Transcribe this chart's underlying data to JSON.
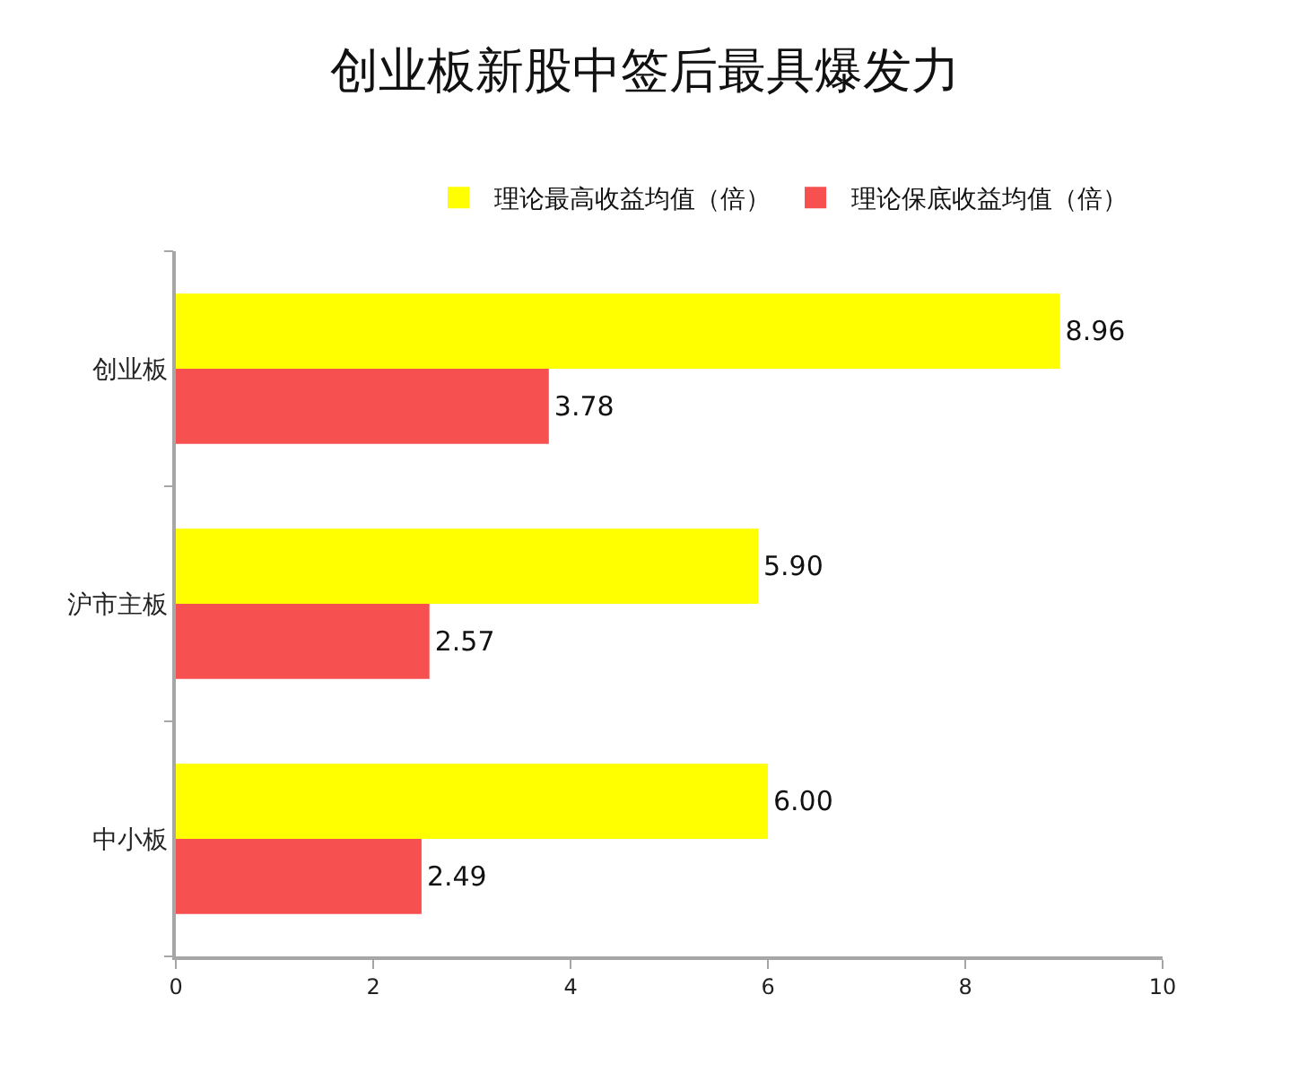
{
  "chart_data": {
    "type": "bar",
    "orientation": "horizontal",
    "title": "创业板新股中签后最具爆发力",
    "categories": [
      "创业板",
      "沪市主板",
      "中小板"
    ],
    "series": [
      {
        "name": "理论最高收益均值（倍）",
        "color": "#ffff00",
        "values": [
          8.96,
          5.9,
          6.0
        ],
        "value_labels": [
          "8.96",
          "5.90",
          "6.00"
        ]
      },
      {
        "name": "理论保底收益均值（倍）",
        "color": "#f75050",
        "values": [
          3.78,
          2.57,
          2.49
        ],
        "value_labels": [
          "3.78",
          "2.57",
          "2.49"
        ]
      }
    ],
    "xlim": [
      0,
      10
    ],
    "xticks": [
      0,
      2,
      4,
      6,
      8,
      10
    ],
    "legend": "top"
  }
}
